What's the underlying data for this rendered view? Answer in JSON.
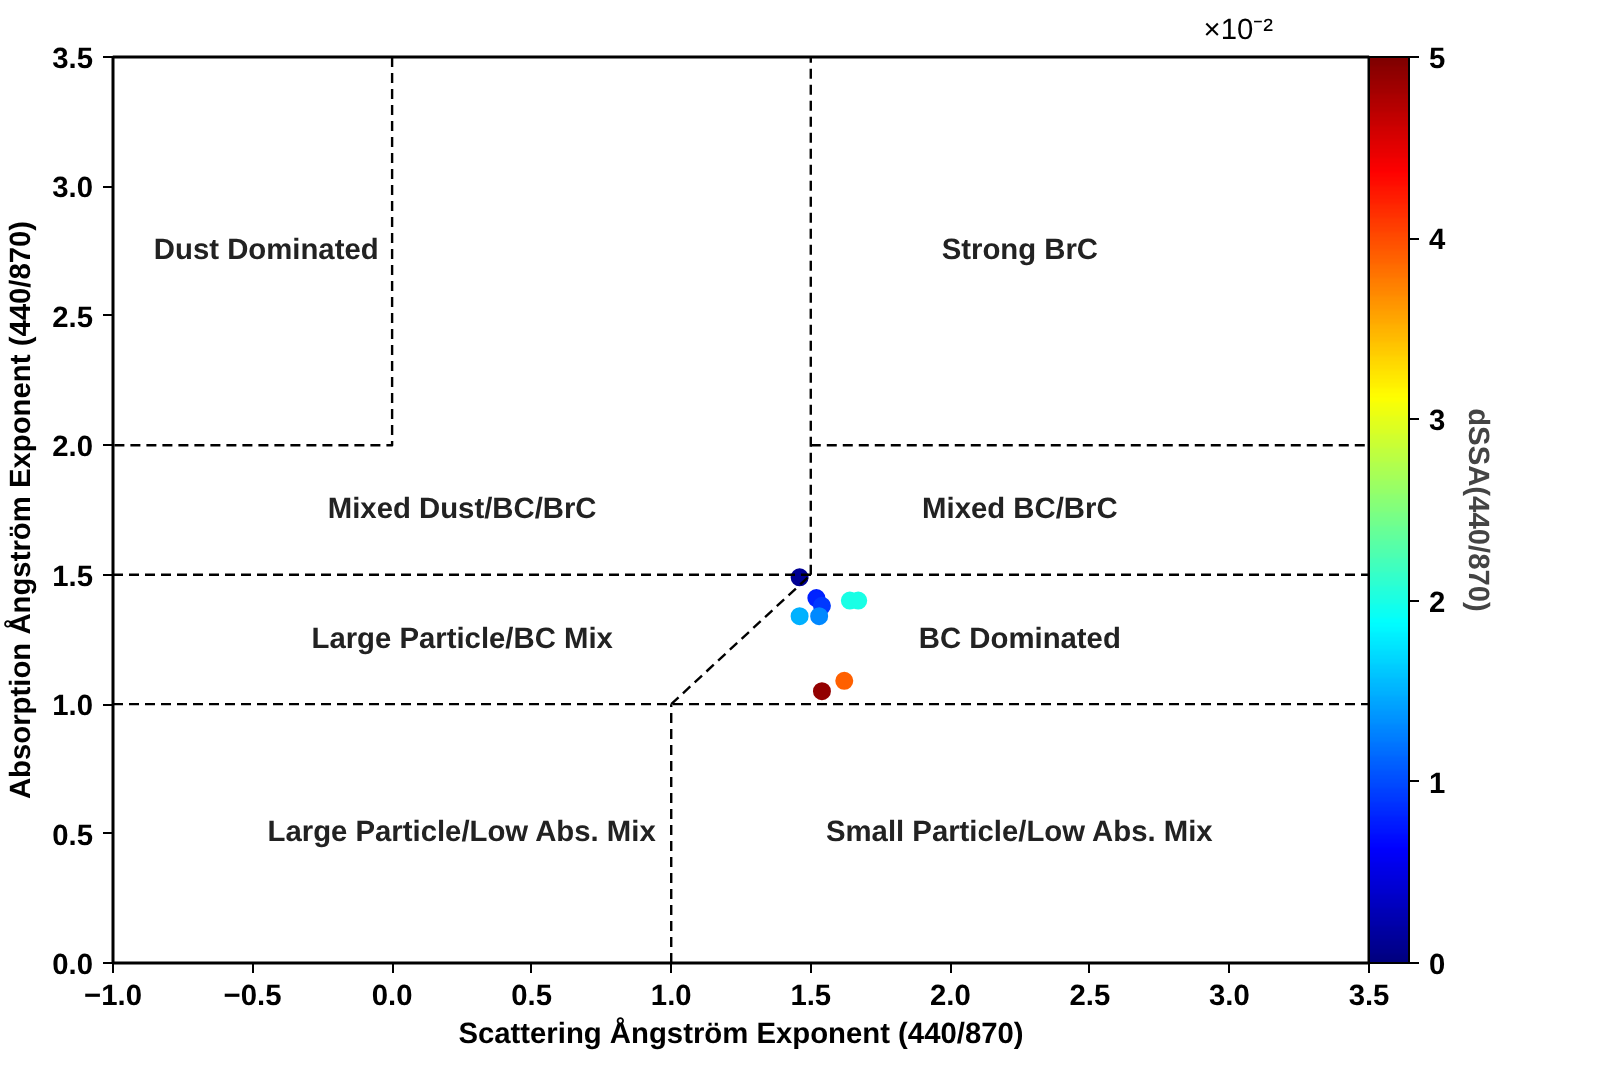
{
  "chart_data": {
    "type": "scatter",
    "xlabel": "Scattering Ångström Exponent (440/870)",
    "ylabel": "Absorption Ångström Exponent (440/870)",
    "clabel": "dSSA(440/870)",
    "xlim": [
      -1.0,
      3.5
    ],
    "ylim": [
      0.0,
      3.5
    ],
    "xticks": [
      {
        "value": -1.0,
        "label": "−1.0"
      },
      {
        "value": -0.5,
        "label": "−0.5"
      },
      {
        "value": 0.0,
        "label": "0.0"
      },
      0.5,
      {
        "value": 1.0,
        "label": "1.0"
      },
      1.5,
      {
        "value": 2.0,
        "label": "2.0"
      },
      2.5,
      {
        "value": 3.0,
        "label": "3.0"
      },
      3.5
    ],
    "yticks": [
      {
        "value": 0.0,
        "label": "0.0"
      },
      0.5,
      {
        "value": 1.0,
        "label": "1.0"
      },
      1.5,
      {
        "value": 2.0,
        "label": "2.0"
      },
      2.5,
      {
        "value": 3.0,
        "label": "3.0"
      },
      3.5
    ],
    "clim": [
      0,
      5
    ],
    "cticks": [
      0,
      1,
      2,
      3,
      4,
      5
    ],
    "grid": false,
    "marker": "circle",
    "series": [
      {
        "x": [
          1.46,
          1.52,
          1.54,
          1.46,
          1.53,
          1.64,
          1.67,
          1.62,
          1.54
        ],
        "values": [
          1.49,
          1.41,
          1.38,
          1.34,
          1.34,
          1.4,
          1.4,
          1.09,
          1.05
        ],
        "cvalues": [
          0.1,
          0.8,
          0.9,
          1.5,
          1.3,
          2.0,
          2.0,
          3.9,
          4.9
        ],
        "colors": [
          "#000093",
          "#0023ff",
          "#0038ff",
          "#00b2ff",
          "#0089ff",
          "#19ffe5",
          "#19ffe5",
          "#ff6000",
          "#930000"
        ]
      },
      {
        "type": "line",
        "marker": "none",
        "color": "#000000",
        "line_style": "dashed",
        "x": [
          0.0,
          0.0,
          -1.0
        ],
        "values": [
          3.5,
          2.0,
          2.0
        ]
      },
      {
        "type": "line",
        "marker": "none",
        "color": "#000000",
        "line_style": "dashed",
        "x": [
          1.5,
          1.5
        ],
        "values": [
          1.5,
          3.5
        ]
      },
      {
        "type": "line",
        "marker": "none",
        "color": "#000000",
        "line_style": "dashed",
        "x": [
          1.5,
          3.5
        ],
        "values": [
          2.0,
          2.0
        ]
      },
      {
        "type": "line",
        "marker": "none",
        "color": "#000000",
        "line_style": "dashed",
        "x": [
          1.0,
          1.5
        ],
        "values": [
          1.0,
          1.5
        ]
      },
      {
        "type": "line",
        "marker": "none",
        "color": "#000000",
        "line_style": "dashed",
        "x": [
          1.0,
          1.0
        ],
        "values": [
          0.0,
          1.0
        ]
      }
    ],
    "ref_lines": [
      {
        "axis": "y",
        "value": 1.5,
        "color": "#000000",
        "line_style": "dashed"
      },
      {
        "axis": "y",
        "value": 1.0,
        "color": "#000000",
        "line_style": "dashed"
      }
    ],
    "annotations": [
      "×10⁻²",
      "Dust Dominated",
      "Strong BrC",
      "Mixed Dust/BC/BrC",
      "Mixed BC/BrC",
      "Large Particle/BC Mix",
      "BC Dominated",
      "Large Particle/Low Abs. Mix",
      "Small Particle/Low Abs. Mix"
    ]
  }
}
